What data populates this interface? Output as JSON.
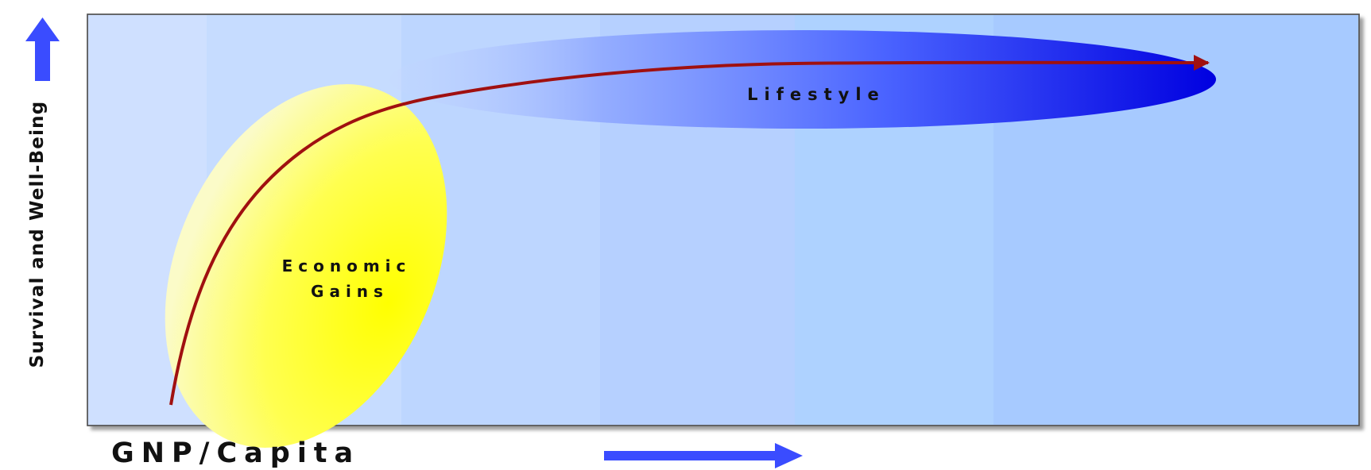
{
  "diagram": {
    "x_axis_label": "GNP/Capita",
    "y_axis_label": "Survival and Well-Being",
    "regions": {
      "economic_gains": {
        "line1": "Economic",
        "line2": "Gains"
      },
      "lifestyle": {
        "label": "Lifestyle"
      }
    },
    "colors": {
      "axis_arrow": "#3a4cff",
      "curve": "#a01010",
      "economic_gains_fill": "#ffff20",
      "lifestyle_fill": "#1a1ae6",
      "panel_light": "#cfe0ff",
      "panel_mid": "#b4d4ff",
      "border": "#555555"
    }
  }
}
